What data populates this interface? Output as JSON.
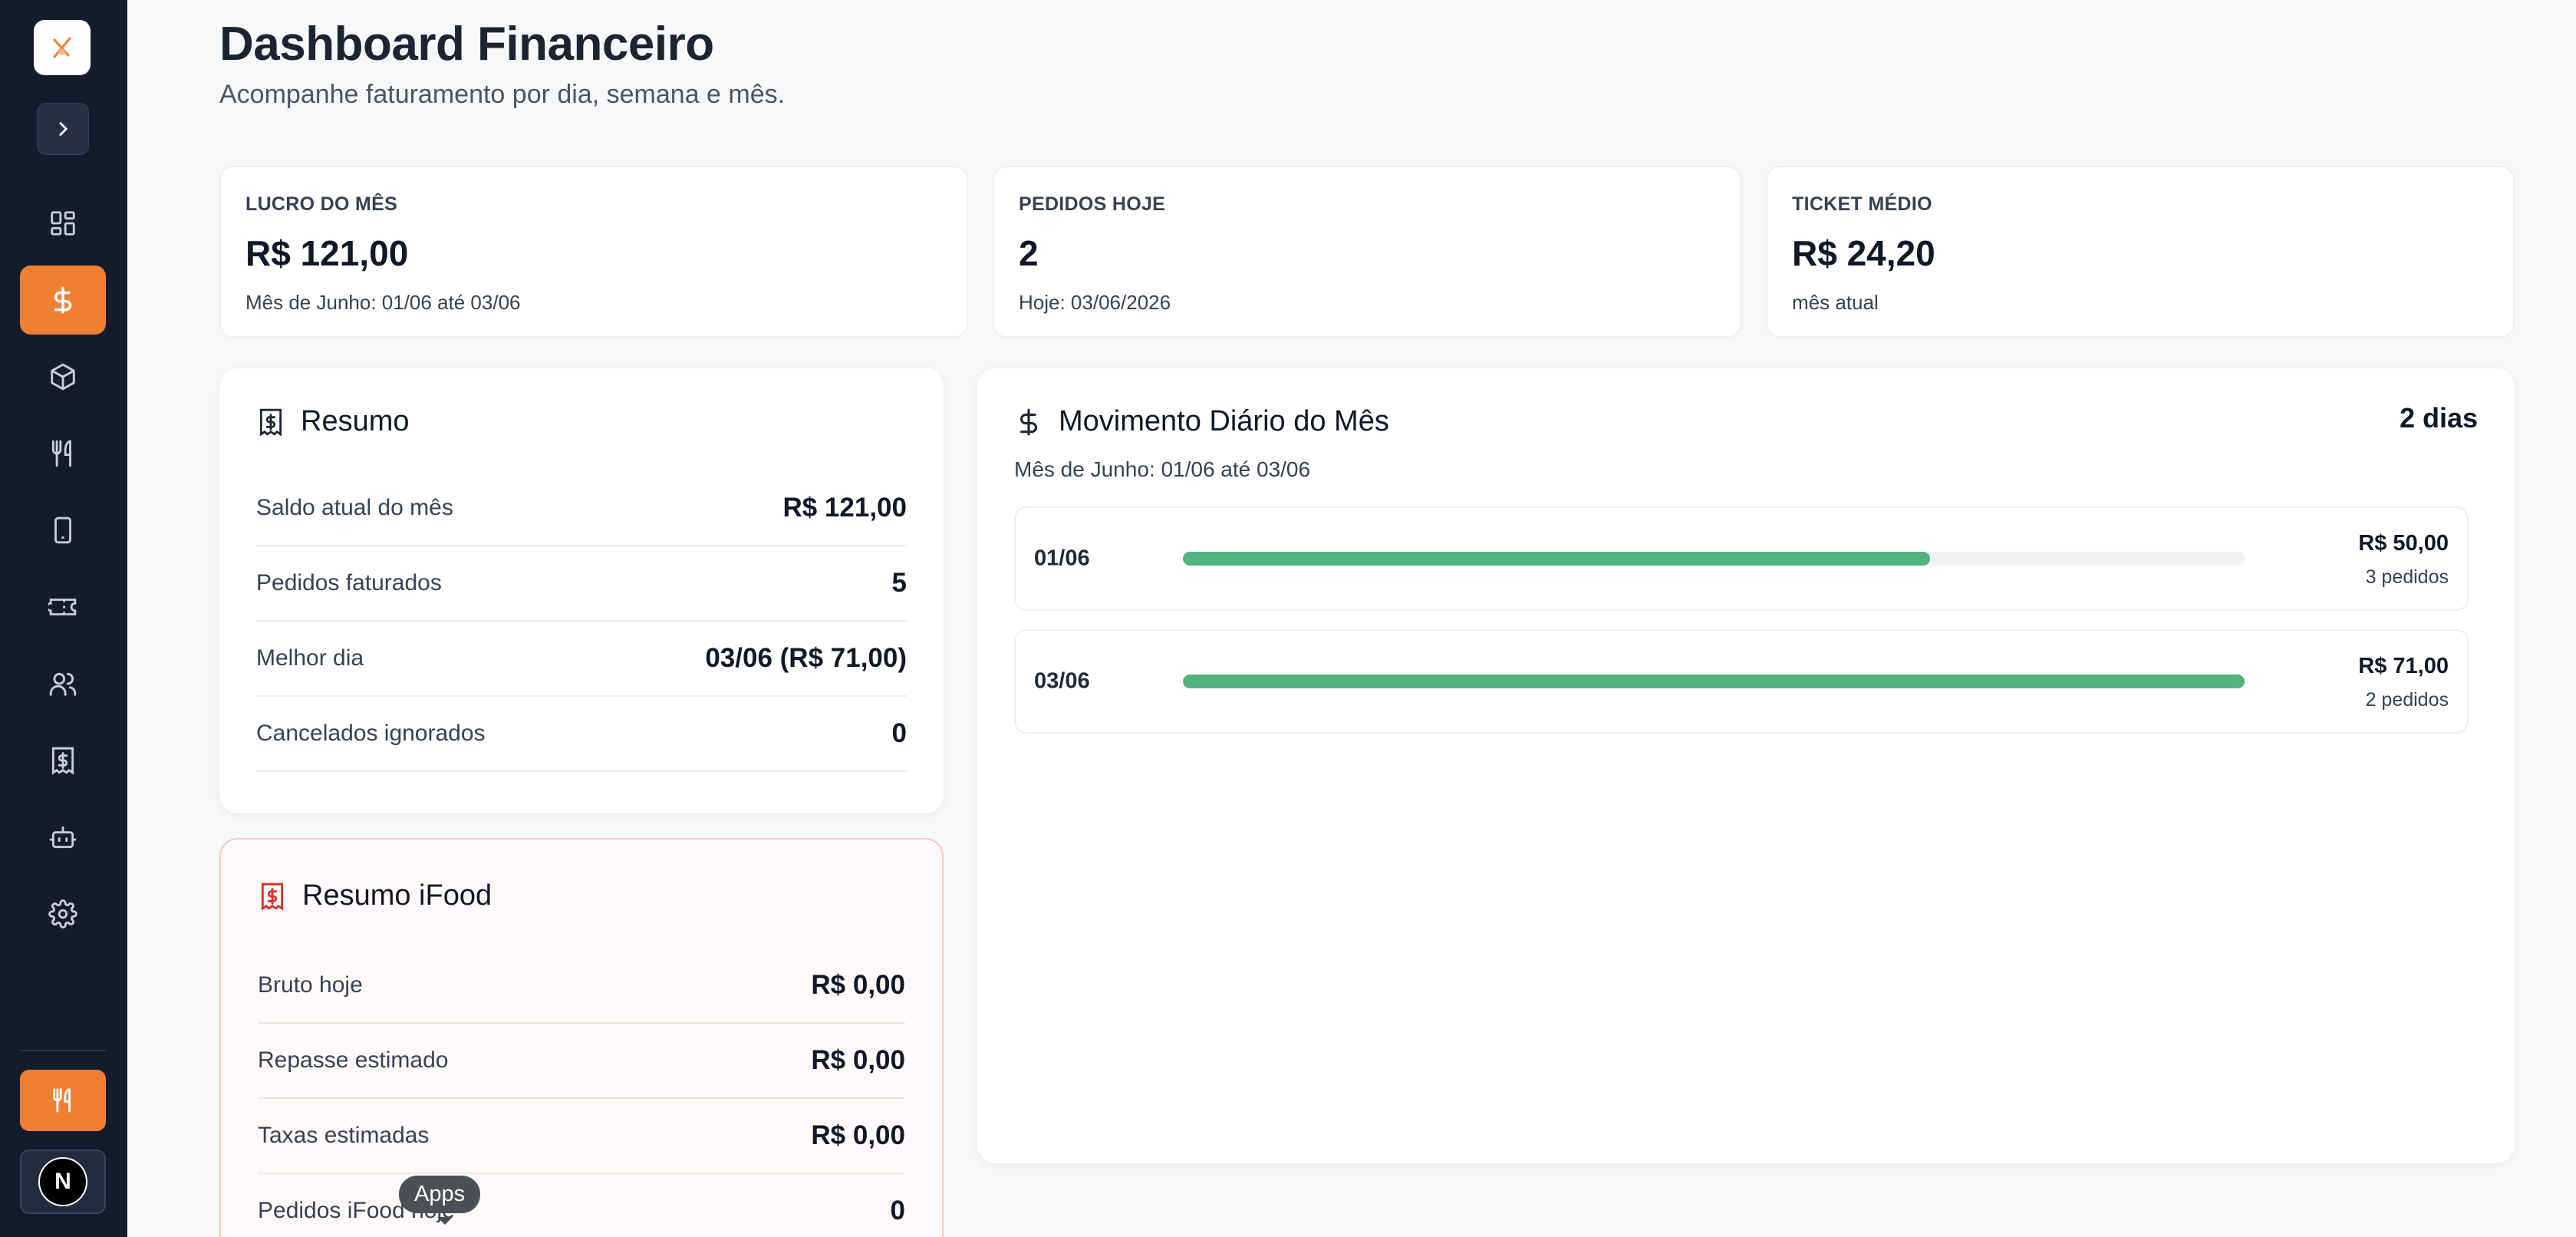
{
  "header": {
    "title": "Dashboard Financeiro",
    "subtitle": "Acompanhe faturamento por dia, semana e mês."
  },
  "colors": {
    "accent": "#f07f34",
    "sidebar_bg": "#141c2b",
    "bar": "#50b47c",
    "ifood_icon": "#d9302a"
  },
  "sidebar": {
    "items": [
      {
        "icon": "dashboard-icon",
        "active": false
      },
      {
        "icon": "dollar-icon",
        "active": true
      },
      {
        "icon": "box-icon",
        "active": false
      },
      {
        "icon": "utensils-icon",
        "active": false
      },
      {
        "icon": "tablet-icon",
        "active": false
      },
      {
        "icon": "ticket-icon",
        "active": false
      },
      {
        "icon": "users-icon",
        "active": false
      },
      {
        "icon": "receipt-icon",
        "active": false
      },
      {
        "icon": "robot-icon",
        "active": false
      },
      {
        "icon": "settings-icon",
        "active": false
      }
    ],
    "user_initial": "N"
  },
  "stats": [
    {
      "label": "LUCRO DO MÊS",
      "value": "R$ 121,00",
      "sub": "Mês de Junho: 01/06 até 03/06"
    },
    {
      "label": "PEDIDOS HOJE",
      "value": "2",
      "sub": "Hoje: 03/06/2026"
    },
    {
      "label": "TICKET MÉDIO",
      "value": "R$ 24,20",
      "sub": "mês atual"
    }
  ],
  "resumo": {
    "title": "Resumo",
    "rows": [
      {
        "label": "Saldo atual do mês",
        "value": "R$ 121,00"
      },
      {
        "label": "Pedidos faturados",
        "value": "5"
      },
      {
        "label": "Melhor dia",
        "value": "03/06 (R$ 71,00)"
      },
      {
        "label": "Cancelados ignorados",
        "value": "0"
      }
    ]
  },
  "ifood": {
    "title": "Resumo iFood",
    "rows": [
      {
        "label": "Bruto hoje",
        "value": "R$ 0,00"
      },
      {
        "label": "Repasse estimado",
        "value": "R$ 0,00"
      },
      {
        "label": "Taxas estimadas",
        "value": "R$ 0,00"
      },
      {
        "label": "Pedidos iFood hoje",
        "value": "0"
      }
    ]
  },
  "movimento": {
    "title": "Movimento Diário do Mês",
    "count": "2 dias",
    "subtitle": "Mês de Junho: 01/06 até 03/06",
    "days": [
      {
        "date": "01/06",
        "amount": "R$ 50,00",
        "orders": "3 pedidos",
        "fraction": 0.704
      },
      {
        "date": "03/06",
        "amount": "R$ 71,00",
        "orders": "2 pedidos",
        "fraction": 1.0
      }
    ]
  },
  "tooltip": "Apps"
}
